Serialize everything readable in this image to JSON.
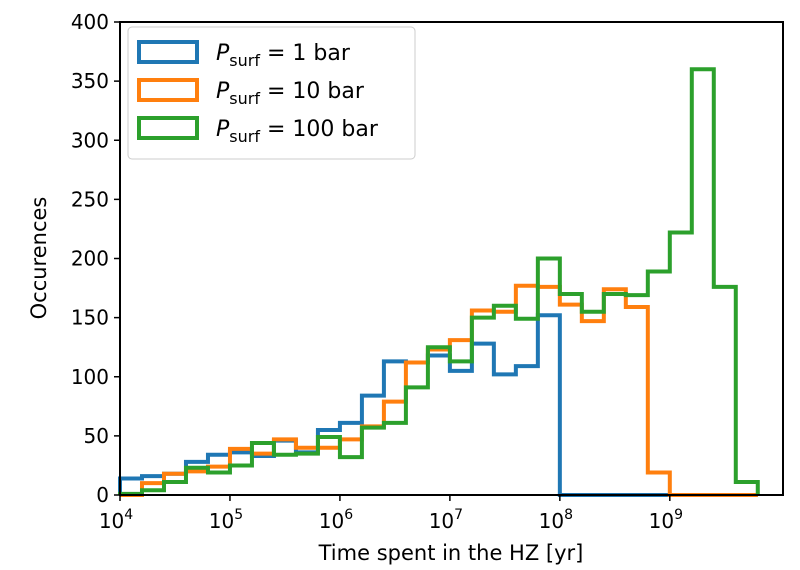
{
  "chart_data": {
    "type": "histogram-step",
    "xlabel": "Time spent in the HZ [yr]",
    "ylabel": "Occurences",
    "xscale": "log",
    "xlim": [
      10000,
      10700000000
    ],
    "ylim": [
      0,
      400
    ],
    "grid": false,
    "legend_placement": "top-left",
    "bin_edges_log10": [
      4.0,
      4.2,
      4.4,
      4.6,
      4.8,
      5.0,
      5.2,
      5.4,
      5.6,
      5.8,
      6.0,
      6.2,
      6.4,
      6.6,
      6.8,
      7.0,
      7.2,
      7.4,
      7.6,
      7.8,
      8.0,
      8.2,
      8.4,
      8.6,
      8.8,
      9.0,
      9.2,
      9.4,
      9.6,
      9.8
    ],
    "x_ticks": [
      {
        "exp": "4",
        "v": 4
      },
      {
        "exp": "5",
        "v": 5
      },
      {
        "exp": "6",
        "v": 6
      },
      {
        "exp": "7",
        "v": 7
      },
      {
        "exp": "8",
        "v": 8
      },
      {
        "exp": "9",
        "v": 9
      }
    ],
    "y_ticks": [
      0,
      50,
      100,
      150,
      200,
      250,
      300,
      350,
      400
    ],
    "series": [
      {
        "name": "P_surf = 1 bar",
        "name_main": "P",
        "name_sub": "surf",
        "name_rest": " = 1 bar",
        "color": "#1f77b4",
        "values": [
          14,
          16,
          18,
          28,
          34,
          36,
          33,
          46,
          36,
          55,
          61,
          84,
          113,
          112,
          118,
          105,
          128,
          102,
          109,
          152,
          0,
          0,
          0,
          0,
          0,
          0,
          0,
          0,
          0
        ]
      },
      {
        "name": "P_surf = 10 bar",
        "name_main": "P",
        "name_sub": "surf",
        "name_rest": " = 10 bar",
        "color": "#ff7f0e",
        "values": [
          0,
          10,
          18,
          20,
          24,
          39,
          35,
          47,
          40,
          40,
          47,
          58,
          79,
          112,
          123,
          131,
          156,
          155,
          177,
          176,
          161,
          147,
          174,
          159,
          19,
          0,
          0,
          0,
          0
        ]
      },
      {
        "name": "P_surf = 100 bar",
        "name_main": "P",
        "name_sub": "surf",
        "name_rest": " = 100 bar",
        "color": "#2ca02c",
        "values": [
          1,
          4,
          11,
          23,
          19,
          25,
          44,
          34,
          35,
          49,
          32,
          57,
          61,
          91,
          125,
          113,
          150,
          160,
          149,
          200,
          170,
          155,
          170,
          169,
          189,
          222,
          360,
          176,
          11
        ]
      }
    ]
  }
}
